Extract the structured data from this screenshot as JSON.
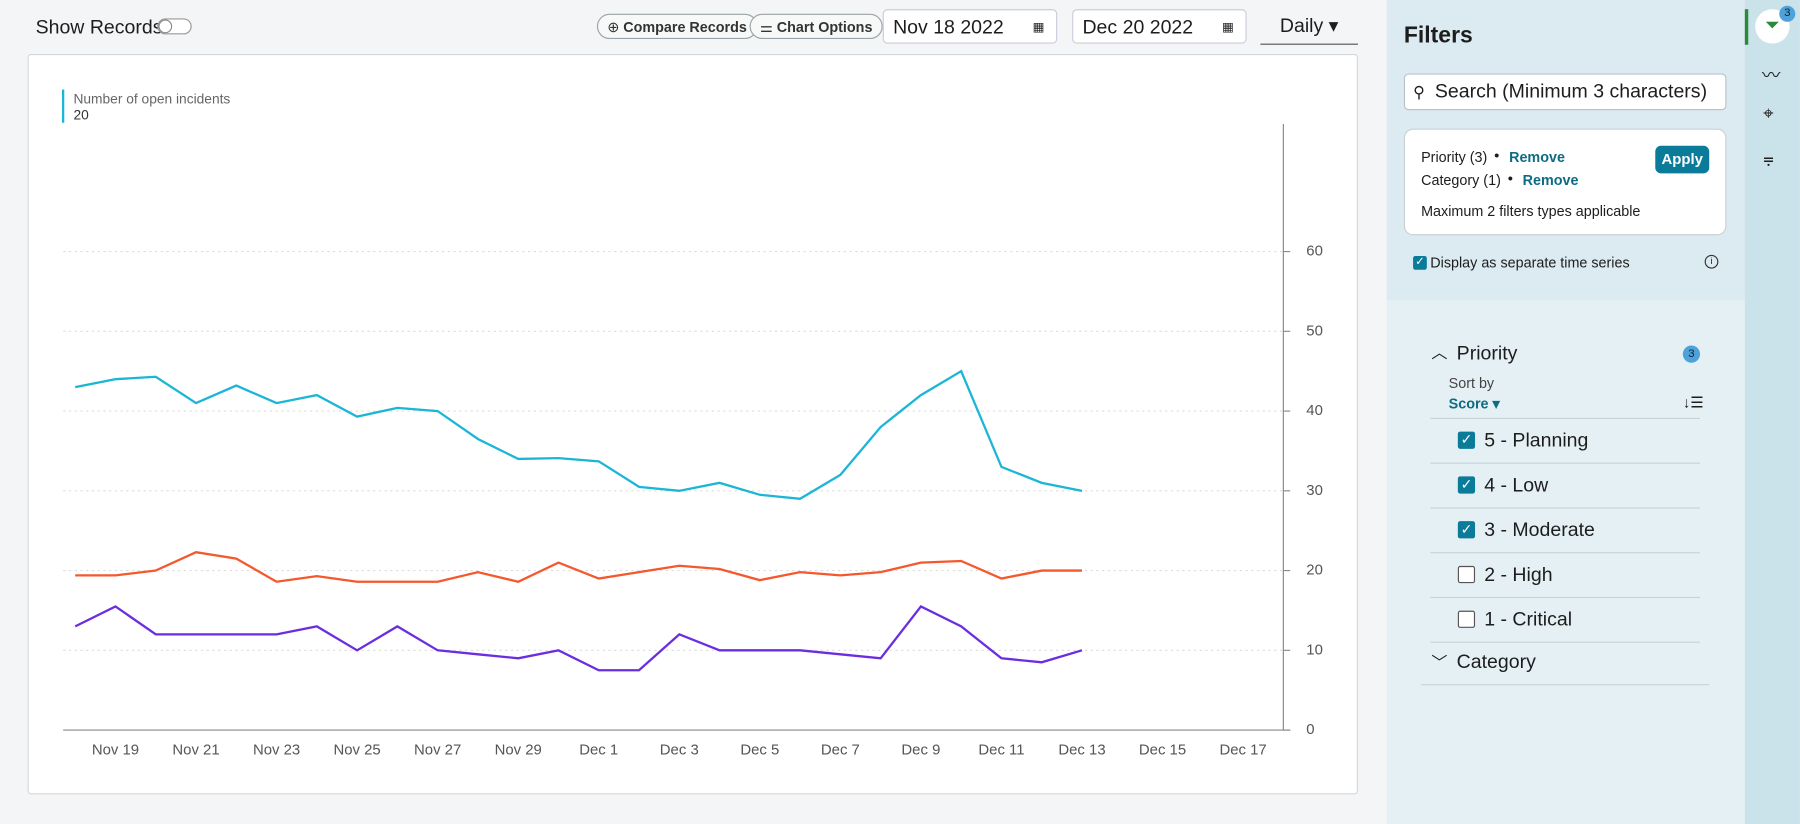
{
  "toolbar": {
    "show_records": "Show Records",
    "compare": "Compare Records",
    "chart_options": "Chart Options",
    "start_date": "Nov 18 2022",
    "end_date": "Dec 20 2022",
    "interval": "Daily"
  },
  "chart_data": {
    "type": "line",
    "legend_label": "Number of open incidents",
    "legend_value": 20,
    "categories": [
      null,
      "Nov 19",
      null,
      "Nov 21",
      null,
      "Nov 23",
      null,
      "Nov 25",
      null,
      "Nov 27",
      null,
      "Nov 29",
      null,
      "Dec 1",
      null,
      "Dec 3",
      null,
      "Dec 5",
      null,
      "Dec 7",
      null,
      "Dec 9",
      null,
      "Dec 11",
      null,
      "Dec 13",
      null,
      "Dec 15",
      null,
      "Dec 17",
      null
    ],
    "series": [
      {
        "color": "#1bb6d6",
        "values": [
          43,
          44,
          44.3,
          41,
          43.2,
          41,
          42,
          39.3,
          40.4,
          40,
          36.5,
          34,
          34.1,
          33.7,
          30.5,
          30,
          31,
          29.5,
          29,
          32,
          38,
          42,
          45,
          33,
          31,
          30,
          null,
          null,
          null,
          null,
          null
        ]
      },
      {
        "color": "#f4582c",
        "values": [
          19.4,
          19.4,
          20,
          22.3,
          21.5,
          18.6,
          19.3,
          18.6,
          18.6,
          18.6,
          19.8,
          18.6,
          21,
          19,
          19.8,
          20.6,
          20.2,
          18.8,
          19.8,
          19.4,
          19.8,
          21,
          21.2,
          19,
          20,
          20,
          null,
          null,
          null,
          null,
          null
        ]
      },
      {
        "color": "#6a2ee0",
        "values": [
          13,
          15.5,
          12,
          12,
          12,
          12,
          13,
          10,
          13,
          10,
          9.5,
          9,
          10,
          7.5,
          7.5,
          12,
          10,
          10,
          10,
          9.5,
          9,
          15.5,
          13,
          9,
          8.5,
          10,
          null,
          null,
          null,
          null,
          null
        ]
      }
    ],
    "ylim": [
      0,
      76
    ],
    "yticks": [
      0,
      10,
      20,
      30,
      40,
      50,
      60
    ],
    "grid": true
  },
  "filters": {
    "title": "Filters",
    "active_count": 3,
    "search_placeholder": "Search (Minimum 3 characters)",
    "applied": [
      {
        "label": "Priority (3)",
        "action": "Remove"
      },
      {
        "label": "Category (1)",
        "action": "Remove"
      }
    ],
    "apply": "Apply",
    "note": "Maximum 2 filters types applicable",
    "separate_series": "Display as separate time series",
    "separate_series_checked": true,
    "priority": {
      "title": "Priority",
      "count": 3,
      "sort_by": "Sort by",
      "sort_field": "Score",
      "options": [
        {
          "label": "5 - Planning",
          "checked": true
        },
        {
          "label": "4 - Low",
          "checked": true
        },
        {
          "label": "3 - Moderate",
          "checked": true
        },
        {
          "label": "2 - High",
          "checked": false
        },
        {
          "label": "1 - Critical",
          "checked": false
        }
      ]
    },
    "category": {
      "title": "Category"
    }
  }
}
